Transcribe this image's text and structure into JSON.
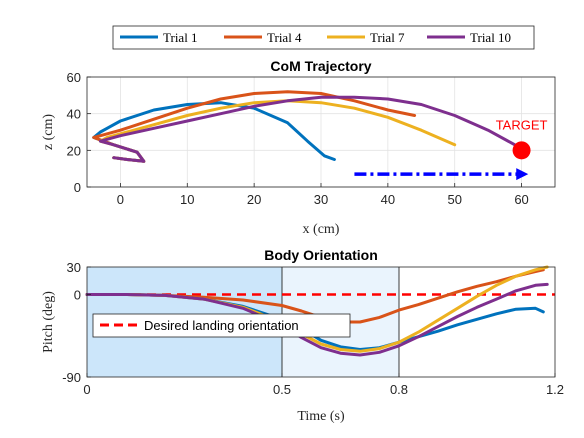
{
  "legend": [
    "Trial 1",
    "Trial 4",
    "Trial 7",
    "Trial 10"
  ],
  "colors": {
    "Trial 1": "#0072BD",
    "Trial 4": "#D95319",
    "Trial 7": "#EDB120",
    "Trial 10": "#7E2F8E",
    "target": "#ff0000",
    "arrow": "#0000ff",
    "desired": "#ff0000",
    "shade_phase1": "#cce6fa",
    "shade_phase2": "#eaf4fd"
  },
  "chart_data": [
    {
      "type": "line",
      "title": "CoM Trajectory",
      "xlabel": "x (cm)",
      "ylabel": "z (cm)",
      "xlim": [
        -5,
        65
      ],
      "ylim": [
        0,
        60
      ],
      "xticks": [
        0,
        10,
        20,
        30,
        40,
        50,
        60
      ],
      "yticks": [
        0,
        20,
        40,
        60
      ],
      "grid": true,
      "target_label": "TARGET",
      "target": {
        "x": 60,
        "y": 20
      },
      "direction_arrow": {
        "x_start": 35,
        "x_end": 61,
        "y": 7
      },
      "series": [
        {
          "name": "Trial 1",
          "x": [
            -1,
            1,
            3.5,
            2.5,
            -1,
            -4,
            -3,
            0,
            5,
            10,
            15,
            20,
            25,
            28,
            30.5,
            32
          ],
          "y": [
            16,
            15,
            14,
            19,
            23,
            27,
            30,
            36,
            42,
            45,
            46,
            43,
            35,
            25,
            17,
            15
          ]
        },
        {
          "name": "Trial 4",
          "x": [
            -1,
            1,
            3.5,
            2.5,
            -1,
            -4,
            -3,
            0,
            5,
            10,
            15,
            20,
            25,
            30,
            35,
            40,
            44
          ],
          "y": [
            16,
            15,
            14,
            19,
            23,
            27,
            28,
            31,
            37,
            43,
            48,
            51,
            52,
            51,
            47,
            42,
            39
          ]
        },
        {
          "name": "Trial 7",
          "x": [
            -1,
            1,
            3.5,
            2.5,
            -1,
            -3,
            -2,
            0,
            5,
            10,
            15,
            20,
            25,
            30,
            35,
            40,
            45,
            50
          ],
          "y": [
            16,
            15,
            14,
            19,
            23,
            25,
            27,
            29,
            34,
            39,
            43,
            46,
            47,
            46,
            43,
            38,
            31,
            23
          ]
        },
        {
          "name": "Trial 10",
          "x": [
            -1,
            1,
            3.5,
            2.5,
            -1,
            -3,
            -2,
            0,
            5,
            10,
            15,
            20,
            25,
            30,
            35,
            40,
            45,
            50,
            55,
            60
          ],
          "y": [
            16,
            15,
            14,
            19,
            23,
            25,
            26,
            28,
            32,
            36,
            40,
            44,
            47,
            49,
            49,
            48,
            45,
            39,
            31,
            21
          ]
        }
      ]
    },
    {
      "type": "line",
      "title": "Body Orientation",
      "xlabel": "Time (s)",
      "ylabel": "Pitch (deg)",
      "xlim": [
        0,
        1.2
      ],
      "ylim": [
        -90,
        30
      ],
      "xticks": [
        0,
        0.5,
        0.8,
        1.2
      ],
      "yticks": [
        -90,
        0,
        30
      ],
      "phase_boundaries": [
        0.5,
        0.8
      ],
      "desired_value": 0,
      "annotation": "Desired landing orientation",
      "series": [
        {
          "name": "Trial 1",
          "x": [
            0,
            0.1,
            0.2,
            0.3,
            0.4,
            0.5,
            0.55,
            0.6,
            0.65,
            0.7,
            0.75,
            0.8,
            0.85,
            0.9,
            0.95,
            1.0,
            1.05,
            1.1,
            1.15,
            1.17
          ],
          "y": [
            0,
            0,
            -1,
            -5,
            -13,
            -27,
            -37,
            -50,
            -57,
            -60,
            -58,
            -52,
            -46,
            -40,
            -33,
            -27,
            -21,
            -16,
            -15,
            -19
          ]
        },
        {
          "name": "Trial 4",
          "x": [
            0,
            0.1,
            0.2,
            0.3,
            0.4,
            0.5,
            0.55,
            0.6,
            0.65,
            0.7,
            0.75,
            0.8,
            0.85,
            0.9,
            0.95,
            1.0,
            1.05,
            1.1,
            1.15,
            1.17
          ],
          "y": [
            0,
            0,
            -1,
            -3,
            -6,
            -12,
            -18,
            -25,
            -30,
            -30,
            -25,
            -17,
            -11,
            -4,
            3,
            9,
            14,
            20,
            25,
            27
          ]
        },
        {
          "name": "Trial 7",
          "x": [
            0,
            0.1,
            0.2,
            0.3,
            0.4,
            0.5,
            0.55,
            0.6,
            0.65,
            0.7,
            0.75,
            0.8,
            0.85,
            0.9,
            0.95,
            1.0,
            1.05,
            1.1,
            1.15,
            1.18
          ],
          "y": [
            0,
            0,
            -1,
            -5,
            -14,
            -30,
            -43,
            -54,
            -60,
            -62,
            -59,
            -52,
            -41,
            -28,
            -15,
            -2,
            10,
            20,
            27,
            30
          ]
        },
        {
          "name": "Trial 10",
          "x": [
            0,
            0.1,
            0.2,
            0.3,
            0.4,
            0.5,
            0.55,
            0.6,
            0.65,
            0.7,
            0.75,
            0.8,
            0.85,
            0.9,
            0.95,
            1.0,
            1.05,
            1.1,
            1.15,
            1.18
          ],
          "y": [
            0,
            0,
            -1,
            -5,
            -15,
            -33,
            -47,
            -58,
            -64,
            -66,
            -63,
            -56,
            -46,
            -35,
            -24,
            -14,
            -5,
            4,
            10,
            11
          ]
        }
      ]
    }
  ]
}
